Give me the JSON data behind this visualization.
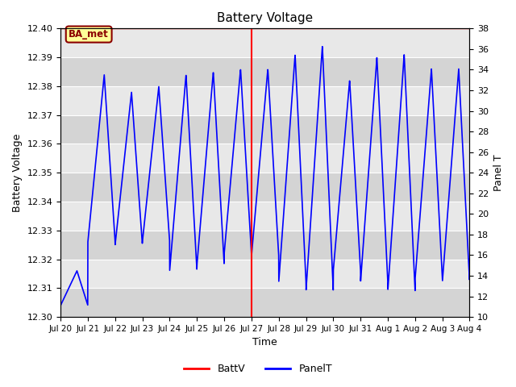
{
  "title": "Battery Voltage",
  "ylabel_left": "Battery Voltage",
  "ylabel_right": "Panel T",
  "xlabel": "Time",
  "ylim_left": [
    12.3,
    12.4
  ],
  "ylim_right": [
    10,
    38
  ],
  "yticks_left": [
    12.3,
    12.31,
    12.32,
    12.33,
    12.34,
    12.35,
    12.36,
    12.37,
    12.38,
    12.39,
    12.4
  ],
  "yticks_right": [
    10,
    12,
    14,
    16,
    18,
    20,
    22,
    24,
    26,
    28,
    30,
    32,
    34,
    36,
    38
  ],
  "vline_x": 7.0,
  "vline_color": "red",
  "hline_y": 12.4,
  "hline_color": "red",
  "line_color": "blue",
  "plot_bg": "#e8e8e8",
  "band_colors": [
    "#d8d8d8",
    "#e8e8e8"
  ],
  "annotation_text": "BA_met",
  "legend_items": [
    {
      "label": "BattV",
      "color": "red"
    },
    {
      "label": "PanelT",
      "color": "blue"
    }
  ],
  "xtick_labels": [
    "Jul 20",
    "Jul 21",
    "Jul 22",
    "Jul 23",
    "Jul 24",
    "Jul 25",
    "Jul 26",
    "Jul 27",
    "Jul 28",
    "Jul 29",
    "Jul 30",
    "Jul 31",
    "Aug 1",
    "Aug 2",
    "Aug 3",
    "Aug 4"
  ],
  "figsize": [
    6.4,
    4.8
  ],
  "dpi": 100
}
